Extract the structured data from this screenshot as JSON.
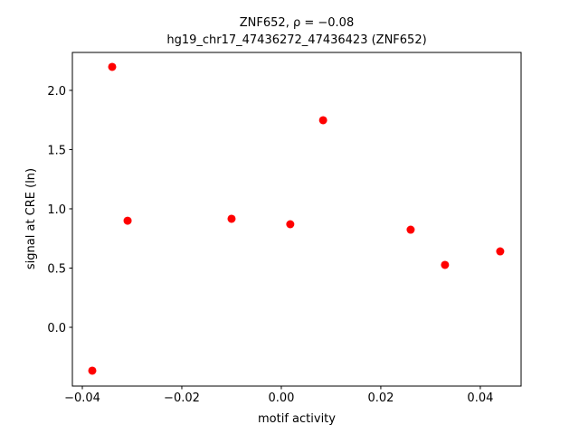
{
  "chart_data": {
    "type": "scatter",
    "title": "ZNF652, ρ = −0.08",
    "subtitle": "hg19_chr17_47436272_47436423 (ZNF652)",
    "x_label": "motif activity",
    "y_label": "signal at CRE (ln)",
    "color": "#ff0000",
    "x": [
      -0.038,
      -0.034,
      -0.0309,
      -0.01,
      0.0018,
      0.0084,
      0.026,
      0.0329,
      0.044
    ],
    "values": [
      -0.366,
      2.198,
      0.9,
      0.916,
      0.87,
      1.748,
      0.824,
      0.527,
      0.641
    ],
    "xlim": [
      -0.042,
      0.0482
    ],
    "ylim": [
      -0.496,
      2.32
    ],
    "xticks": [
      {
        "value": -0.04,
        "label": "−0.04"
      },
      {
        "value": -0.02,
        "label": "−0.02"
      },
      {
        "value": 0,
        "label": "0.00"
      },
      0.02,
      0.04
    ],
    "yticks": [
      {
        "value": 0,
        "label": "0.0"
      },
      0.5,
      {
        "value": 1,
        "label": "1.0"
      },
      1.5,
      {
        "value": 2,
        "label": "2.0"
      }
    ],
    "grid": false
  }
}
